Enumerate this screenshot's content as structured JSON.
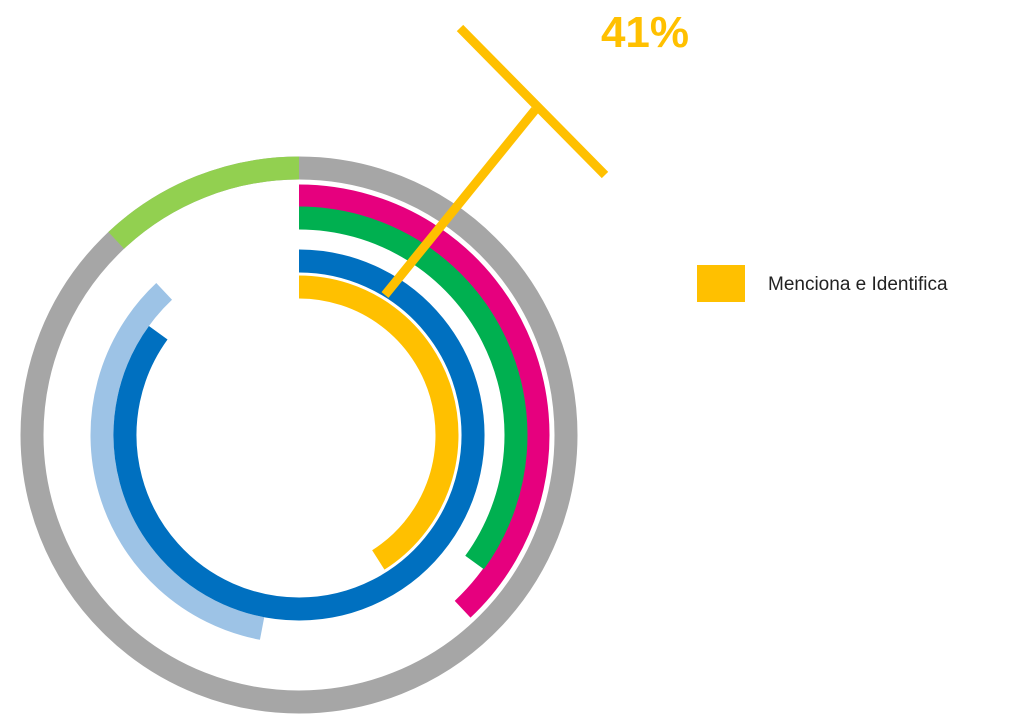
{
  "chart_data": {
    "type": "radial",
    "annotation": "41%",
    "series": [
      {
        "color": "#a6a6a6",
        "values": [
          100
        ]
      },
      {
        "color": "#92d050",
        "values": [
          12
        ],
        "start": 88
      },
      {
        "color": "#e6007e",
        "values": [
          38
        ]
      },
      {
        "color": "#00b050",
        "values": [
          35
        ]
      },
      {
        "color": "#9dc3e6",
        "values": [
          35
        ],
        "start": 53
      },
      {
        "color": "#0070c0",
        "values": [
          85
        ]
      },
      {
        "name": "Menciona e Identifica",
        "color": "#ffc000",
        "values": [
          41
        ]
      }
    ]
  }
}
